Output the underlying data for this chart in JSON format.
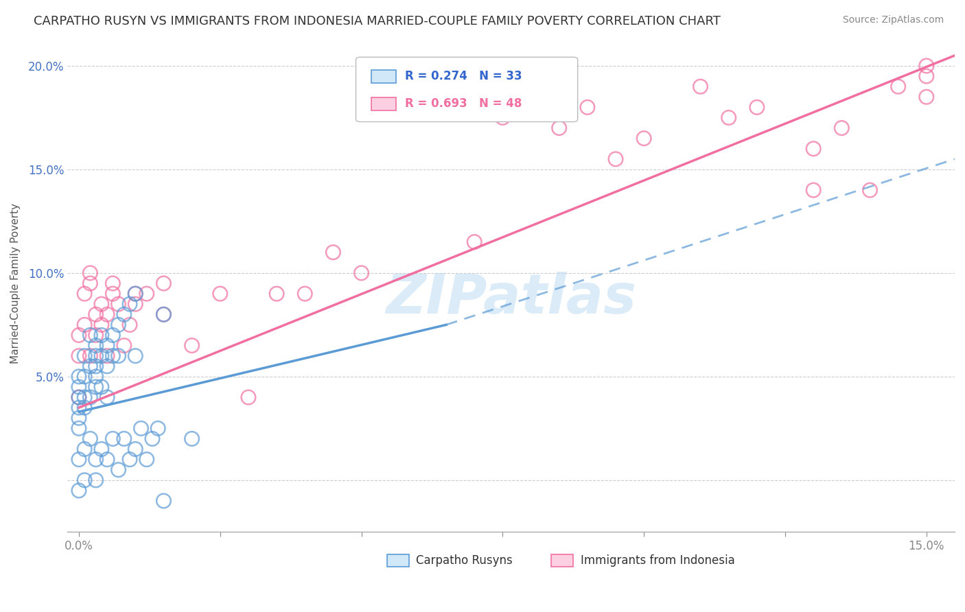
{
  "title": "CARPATHO RUSYN VS IMMIGRANTS FROM INDONESIA MARRIED-COUPLE FAMILY POVERTY CORRELATION CHART",
  "source": "Source: ZipAtlas.com",
  "ylabel": "Married-Couple Family Poverty",
  "watermark": "ZIPatlas",
  "xlim": [
    -0.002,
    0.155
  ],
  "ylim": [
    -0.025,
    0.215
  ],
  "xticks": [
    0.0,
    0.025,
    0.05,
    0.075,
    0.1,
    0.125,
    0.15
  ],
  "xticklabels": [
    "0.0%",
    "",
    "",
    "",
    "",
    "",
    "15.0%"
  ],
  "yticks": [
    0.0,
    0.05,
    0.1,
    0.15,
    0.2
  ],
  "yticklabels": [
    "",
    "5.0%",
    "10.0%",
    "15.0%",
    "20.0%"
  ],
  "legend1_R": "0.274",
  "legend1_N": "33",
  "legend2_R": "0.693",
  "legend2_N": "48",
  "title_fontsize": 13,
  "source_fontsize": 10,
  "blue_color": "#5b9bd5",
  "pink_color": "#f06fa0",
  "blue_scatter": {
    "x": [
      0.0,
      0.0,
      0.0,
      0.0,
      0.0,
      0.0,
      0.001,
      0.001,
      0.001,
      0.001,
      0.002,
      0.002,
      0.002,
      0.003,
      0.003,
      0.003,
      0.003,
      0.003,
      0.004,
      0.004,
      0.004,
      0.005,
      0.005,
      0.005,
      0.006,
      0.006,
      0.007,
      0.007,
      0.008,
      0.009,
      0.01,
      0.01,
      0.015
    ],
    "y": [
      0.035,
      0.045,
      0.03,
      0.04,
      0.05,
      0.025,
      0.04,
      0.05,
      0.035,
      0.06,
      0.055,
      0.04,
      0.07,
      0.06,
      0.045,
      0.05,
      0.065,
      0.055,
      0.06,
      0.045,
      0.07,
      0.055,
      0.065,
      0.04,
      0.07,
      0.06,
      0.075,
      0.06,
      0.08,
      0.085,
      0.09,
      0.06,
      0.08
    ]
  },
  "blue_scatter_low": {
    "x": [
      0.0,
      0.0,
      0.001,
      0.001,
      0.002,
      0.003,
      0.003,
      0.004,
      0.005,
      0.006,
      0.007,
      0.008,
      0.009,
      0.01,
      0.011,
      0.012,
      0.013,
      0.014,
      0.015,
      0.02
    ],
    "y": [
      0.01,
      -0.005,
      0.015,
      0.0,
      0.02,
      0.01,
      0.0,
      0.015,
      0.01,
      0.02,
      0.005,
      0.02,
      0.01,
      0.015,
      0.025,
      0.01,
      0.02,
      0.025,
      -0.01,
      0.02
    ]
  },
  "pink_scatter": {
    "x": [
      0.0,
      0.0,
      0.0,
      0.001,
      0.001,
      0.002,
      0.002,
      0.002,
      0.003,
      0.003,
      0.004,
      0.004,
      0.005,
      0.005,
      0.006,
      0.006,
      0.007,
      0.008,
      0.009,
      0.01,
      0.01,
      0.012,
      0.015,
      0.015,
      0.02,
      0.025,
      0.03,
      0.035,
      0.04,
      0.045,
      0.05,
      0.07,
      0.075,
      0.085,
      0.09,
      0.095,
      0.1,
      0.11,
      0.115,
      0.12,
      0.13,
      0.13,
      0.135,
      0.14,
      0.145,
      0.15,
      0.15,
      0.15
    ],
    "y": [
      0.04,
      0.06,
      0.07,
      0.075,
      0.09,
      0.06,
      0.095,
      0.1,
      0.07,
      0.08,
      0.075,
      0.085,
      0.06,
      0.08,
      0.09,
      0.095,
      0.085,
      0.065,
      0.075,
      0.09,
      0.085,
      0.09,
      0.08,
      0.095,
      0.065,
      0.09,
      0.04,
      0.09,
      0.09,
      0.11,
      0.1,
      0.115,
      0.175,
      0.17,
      0.18,
      0.155,
      0.165,
      0.19,
      0.175,
      0.18,
      0.14,
      0.16,
      0.17,
      0.14,
      0.19,
      0.195,
      0.2,
      0.185
    ]
  },
  "blue_solid_line": {
    "x0": 0.0,
    "x1": 0.065,
    "y0": 0.033,
    "y1": 0.075
  },
  "blue_dash_line": {
    "x0": 0.065,
    "x1": 0.155,
    "y0": 0.075,
    "y1": 0.155
  },
  "pink_line": {
    "x0": 0.0,
    "x1": 0.155,
    "y0": 0.035,
    "y1": 0.205
  }
}
